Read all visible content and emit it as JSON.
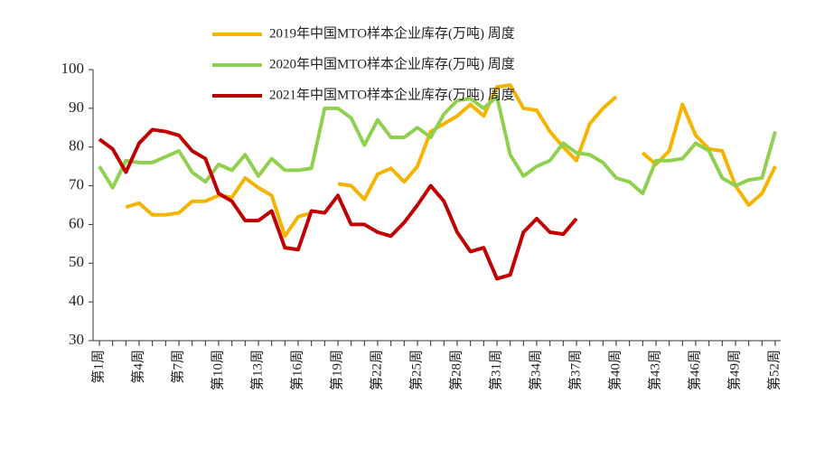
{
  "chart_data": {
    "type": "line",
    "categories": [
      "第1周",
      null,
      null,
      "第4周",
      null,
      null,
      "第7周",
      null,
      null,
      "第10周",
      null,
      null,
      "第13周",
      null,
      null,
      "第16周",
      null,
      null,
      "第19周",
      null,
      null,
      "第22周",
      null,
      null,
      "第25周",
      null,
      null,
      "第28周",
      null,
      null,
      "第31周",
      null,
      null,
      "第34周",
      null,
      null,
      "第37周",
      null,
      null,
      "第40周",
      null,
      null,
      "第43周",
      null,
      null,
      "第46周",
      null,
      null,
      "第49周",
      null,
      null,
      "第52周"
    ],
    "series": [
      {
        "name": "2019年中国MTO样本企业库存(万吨) 周度",
        "color": "#f5b400",
        "values": [
          null,
          null,
          64.5,
          65.5,
          62.5,
          62.5,
          63,
          66,
          66,
          67.5,
          67,
          72,
          69.5,
          67.5,
          57,
          62,
          63,
          null,
          70.5,
          70,
          66.5,
          73,
          74.5,
          71,
          75,
          84,
          86,
          88,
          91,
          88,
          95.5,
          96,
          90,
          89.5,
          84,
          80,
          76.5,
          86,
          90,
          93,
          null,
          78.5,
          75.5,
          79,
          91,
          83,
          79.5,
          79,
          70,
          65,
          68,
          75
        ]
      },
      {
        "name": "2020年中国MTO样本企业库存(万吨) 周度",
        "color": "#8fd14f",
        "values": [
          75,
          69.5,
          76.5,
          76,
          76,
          77.5,
          79,
          73.5,
          71,
          75.5,
          74,
          78,
          72.5,
          77,
          74,
          74,
          74.5,
          90,
          90,
          87.5,
          80.5,
          87,
          82.5,
          82.5,
          85,
          82.5,
          88.5,
          92,
          92.5,
          90,
          93,
          78,
          72.5,
          75,
          76.5,
          81,
          78.5,
          78,
          76,
          72,
          71,
          68,
          76.5,
          76.5,
          77,
          81,
          79,
          72,
          70,
          71.5,
          72,
          84
        ]
      },
      {
        "name": "2021年中国MTO样本企业库存(万吨) 周度",
        "color": "#c00000",
        "values": [
          82,
          79.5,
          73.5,
          81,
          84.5,
          84,
          83,
          79,
          77,
          68,
          66,
          61,
          61,
          63.5,
          54,
          53.5,
          63.5,
          63,
          67.5,
          60,
          60,
          58,
          57,
          60.5,
          65,
          70,
          66,
          58,
          53,
          54,
          46,
          47,
          58,
          61.5,
          58,
          57.5,
          61.5,
          null,
          null,
          null,
          null,
          null,
          null,
          null,
          null,
          null,
          null,
          null,
          null,
          null,
          null,
          null
        ]
      }
    ],
    "ylim": [
      30,
      100
    ],
    "yticks": [
      30,
      40,
      50,
      60,
      70,
      80,
      90,
      100
    ]
  }
}
